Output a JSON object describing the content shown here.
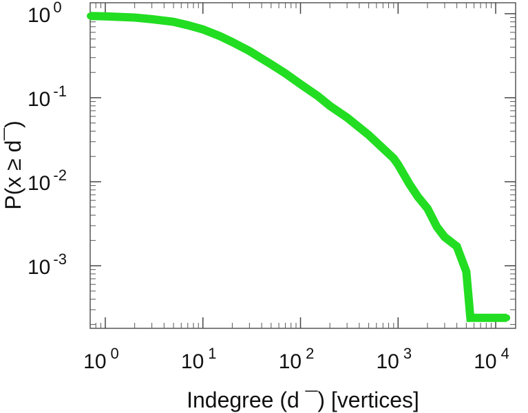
{
  "chart_data": {
    "type": "line",
    "title": "",
    "xlabel": "Indegree (d ¯) [vertices]",
    "ylabel": "P(x ≥ d¯)",
    "xscale": "log",
    "yscale": "log",
    "xlim": [
      0.7,
      16000
    ],
    "ylim": [
      0.00018,
      1.35
    ],
    "grid": false,
    "legend": "none",
    "color": "#22dd22",
    "x_ticks": [
      {
        "value": 1,
        "base": "10",
        "exp": "0"
      },
      {
        "value": 10,
        "base": "10",
        "exp": "1"
      },
      {
        "value": 100,
        "base": "10",
        "exp": "2"
      },
      {
        "value": 1000,
        "base": "10",
        "exp": "3"
      },
      {
        "value": 10000,
        "base": "10",
        "exp": "4"
      }
    ],
    "y_ticks": [
      {
        "value": 1,
        "base": "10",
        "exp": "0"
      },
      {
        "value": 0.1,
        "base": "10",
        "exp": "-1"
      },
      {
        "value": 0.01,
        "base": "10",
        "exp": "-2"
      },
      {
        "value": 0.001,
        "base": "10",
        "exp": "-3"
      }
    ],
    "series": [
      {
        "x": [
          0.7,
          1,
          2,
          3,
          5,
          7,
          10,
          15,
          20,
          30,
          50,
          70,
          100,
          150,
          200,
          300,
          500,
          700,
          900,
          1000,
          1300,
          1600,
          2000,
          2500,
          3000,
          4000,
          5000,
          5500,
          10000,
          13000
        ],
        "y": [
          0.94,
          0.93,
          0.9,
          0.86,
          0.8,
          0.73,
          0.65,
          0.54,
          0.46,
          0.36,
          0.25,
          0.195,
          0.145,
          0.105,
          0.08,
          0.058,
          0.036,
          0.025,
          0.019,
          0.016,
          0.0095,
          0.0066,
          0.0048,
          0.0029,
          0.0022,
          0.0017,
          0.00085,
          0.00024,
          0.00024,
          0.00024
        ]
      }
    ]
  }
}
